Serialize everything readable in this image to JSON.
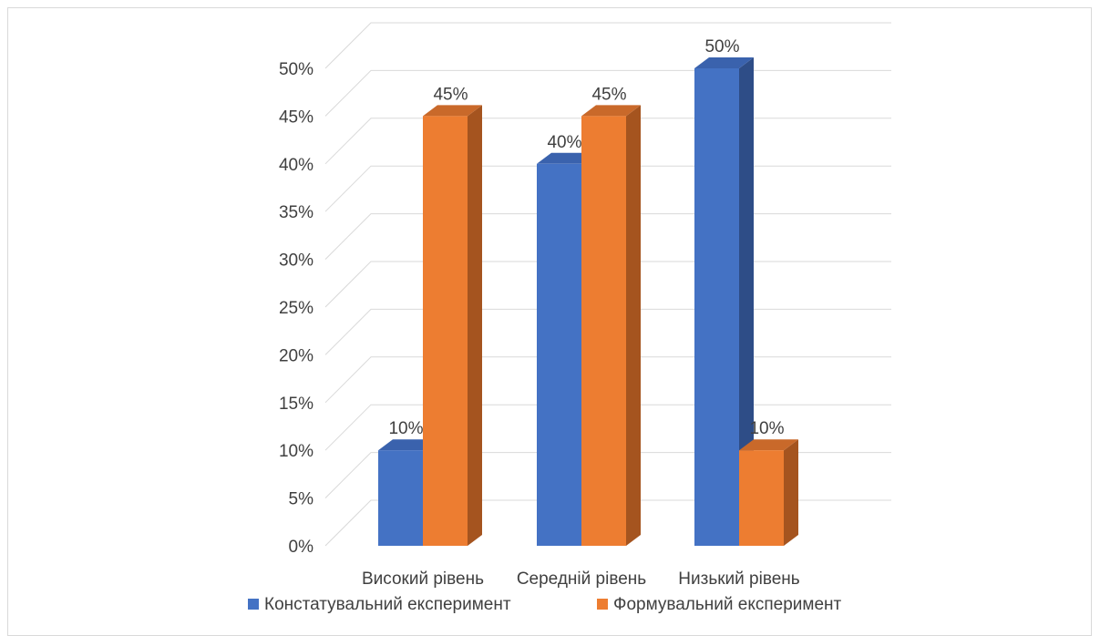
{
  "chart_data": {
    "type": "bar",
    "title": "",
    "xlabel": "",
    "ylabel": "",
    "categories": [
      "Високий рівень",
      "Середній рівень",
      "Низький рівень"
    ],
    "series": [
      {
        "name": "Констатувальний експеримент",
        "values": [
          10,
          40,
          50
        ],
        "labels": [
          "10%",
          "40%",
          "50%"
        ]
      },
      {
        "name": "Формувальний експеримент",
        "values": [
          45,
          45,
          10
        ],
        "labels": [
          "45%",
          "45%",
          "10%"
        ]
      }
    ],
    "ylim": [
      0,
      50
    ],
    "yticks": [
      0,
      5,
      10,
      15,
      20,
      25,
      30,
      35,
      40,
      45,
      50
    ],
    "ytick_labels": [
      "0%",
      "5%",
      "10%",
      "15%",
      "20%",
      "25%",
      "30%",
      "35%",
      "40%",
      "45%",
      "50%"
    ],
    "grid": true,
    "legend_position": "bottom",
    "style": "3d-column",
    "colors": {
      "series_front": [
        "#4472c4",
        "#ed7d31"
      ],
      "series_side": [
        "#2e4d87",
        "#a5541f"
      ],
      "series_top": [
        "#3a62ad",
        "#c9692a"
      ],
      "grid": "#d9d9d9",
      "text": "#404040"
    }
  }
}
